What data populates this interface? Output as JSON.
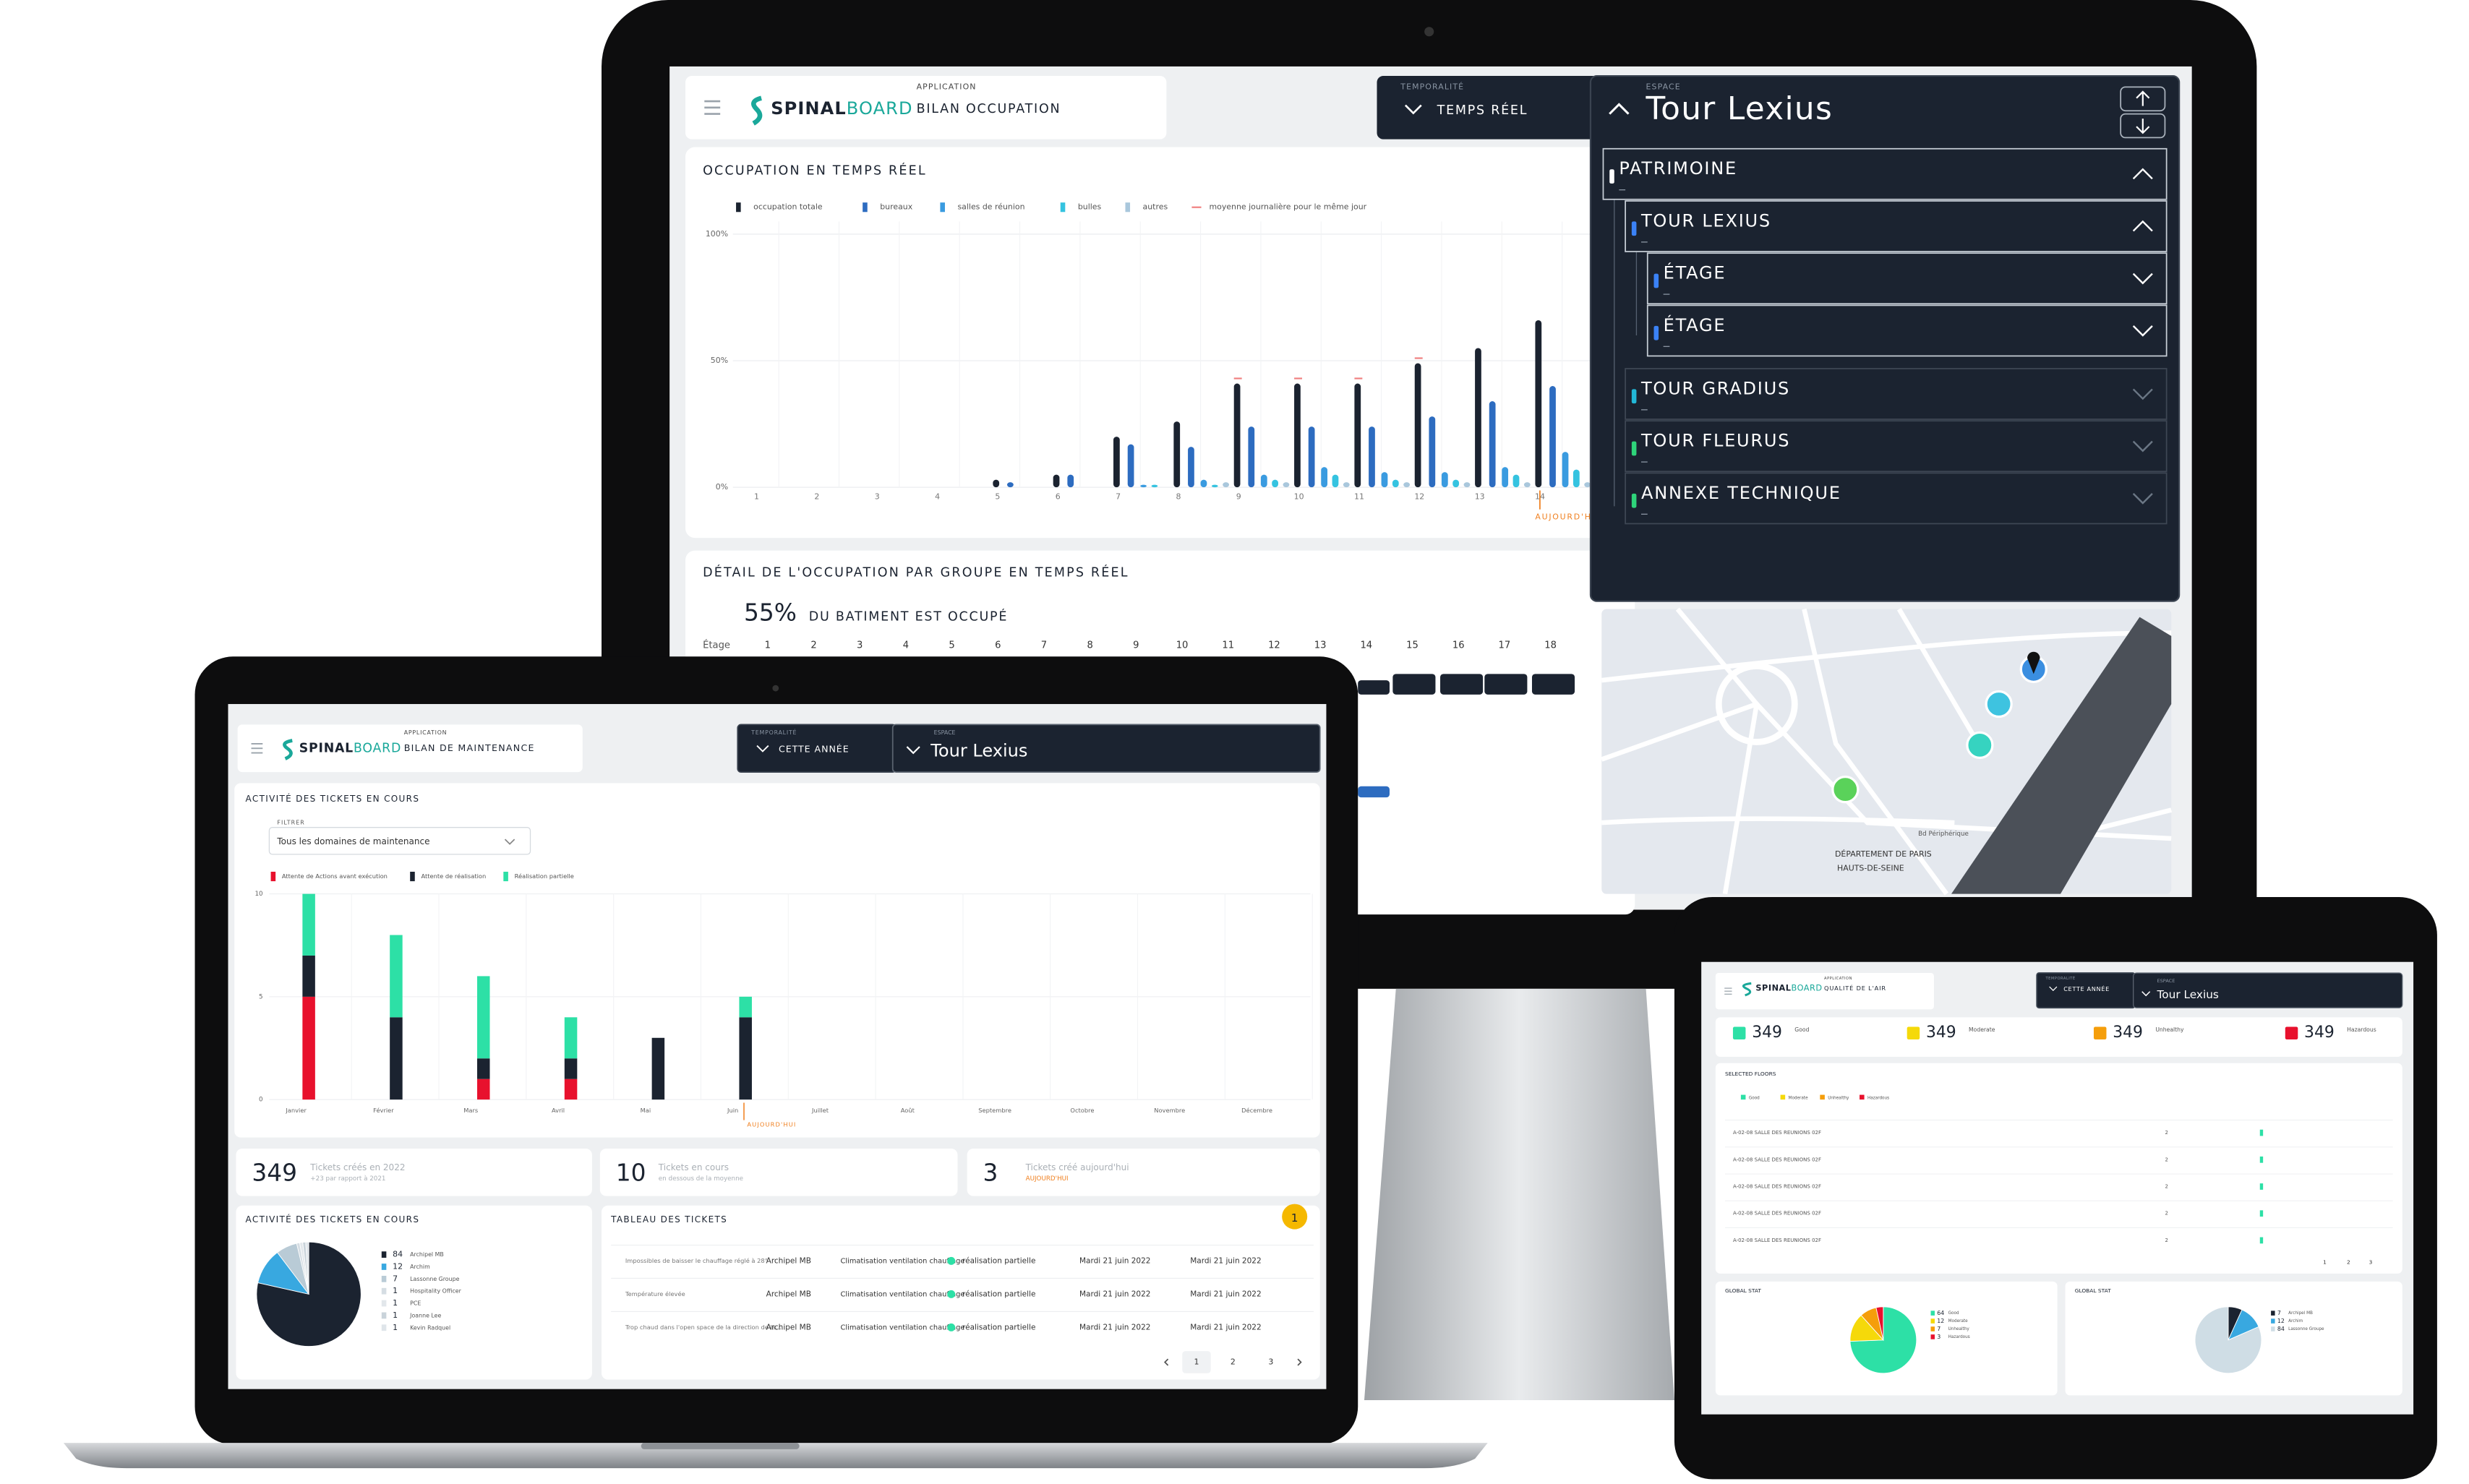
{
  "monitor": {
    "header": {
      "app_label": "APPLICATION",
      "brand_a": "SPINAL",
      "brand_b": "BOARD",
      "title": "BILAN OCCUPATION"
    },
    "temporalite": {
      "label": "TEMPORALITÉ",
      "value": "TEMPS RÉEL"
    },
    "espace": {
      "label": "ESPACE",
      "value": "Tour Lexius"
    },
    "tree": [
      {
        "label": "PATRIMOINE",
        "color": "#ffffff"
      },
      {
        "label": "TOUR LEXIUS",
        "color": "#3b82f6"
      },
      {
        "label": "ÉTAGE",
        "color": "#3b82f6"
      },
      {
        "label": "ÉTAGE",
        "color": "#3b82f6"
      },
      {
        "label": "TOUR GRADIUS",
        "color": "#22b8d8"
      },
      {
        "label": "TOUR FLEURUS",
        "color": "#2ed47a"
      },
      {
        "label": "ANNEXE TECHNIQUE",
        "color": "#2ed47a"
      }
    ],
    "map_labels": [
      "DÉPARTEMENT DE PARIS",
      "HAUTS-DE-SEINE",
      "Bd Périphérique"
    ],
    "chart_data": {
      "type": "bar",
      "title": "OCCUPATION EN TEMPS RÉEL",
      "categories": [
        "1",
        "2",
        "3",
        "4",
        "5",
        "6",
        "7",
        "8",
        "9",
        "10",
        "11",
        "12",
        "13",
        "14"
      ],
      "ylim": [
        0,
        100
      ],
      "yticks": [
        {
          "value": 0,
          "label": "0%"
        },
        {
          "value": 50,
          "label": "50%"
        },
        {
          "value": 100,
          "label": "100%"
        }
      ],
      "annotation": "AUJOURD'HUI",
      "series": [
        {
          "name": "occupation totale",
          "color": "#1b2330",
          "values": [
            null,
            null,
            null,
            null,
            3,
            5,
            20,
            26,
            41,
            41,
            41,
            49,
            55,
            66
          ]
        },
        {
          "name": "bureaux",
          "color": "#2d6cc0",
          "values": [
            null,
            null,
            null,
            null,
            2,
            5,
            17,
            16,
            24,
            24,
            24,
            28,
            34,
            40
          ]
        },
        {
          "name": "salles de réunion",
          "color": "#3a9be0",
          "values": [
            null,
            null,
            null,
            null,
            null,
            null,
            1,
            3,
            5,
            8,
            6,
            6,
            8,
            14
          ]
        },
        {
          "name": "bulles",
          "color": "#35c3e0",
          "values": [
            null,
            null,
            null,
            null,
            null,
            null,
            1,
            1,
            3,
            5,
            3,
            3,
            5,
            7
          ]
        },
        {
          "name": "autres",
          "color": "#a9c7dc",
          "values": [
            null,
            null,
            null,
            null,
            null,
            null,
            null,
            2,
            2,
            2,
            2,
            2,
            2,
            2
          ]
        },
        {
          "name": "moyenne journalière pour le même jour",
          "color": "#f08080",
          "values": [
            null,
            null,
            null,
            null,
            null,
            null,
            null,
            null,
            43,
            43,
            43,
            51,
            null,
            null
          ]
        }
      ]
    },
    "detail": {
      "title": "DÉTAIL DE L'OCCUPATION PAR GROUPE EN TEMPS RÉEL",
      "percent": "55%",
      "caption": "DU BATIMENT EST OCCUPÉ",
      "floor_label": "Étage",
      "floors": [
        "1",
        "2",
        "3",
        "4",
        "5",
        "6",
        "7",
        "8",
        "9",
        "10",
        "11",
        "12",
        "13",
        "14",
        "15",
        "16",
        "17",
        "18"
      ]
    }
  },
  "laptop": {
    "header": {
      "app_label": "APPLICATION",
      "brand_a": "SPINAL",
      "brand_b": "BOARD",
      "title": "BILAN DE MAINTENANCE"
    },
    "temporalite": {
      "label": "TEMPORALITÉ",
      "value": "CETTE ANNÉE"
    },
    "espace": {
      "label": "ESPACE",
      "value": "Tour Lexius"
    },
    "filter": {
      "label": "FILTRER",
      "value": "Tous les domaines de maintenance"
    },
    "chart_data": {
      "type": "stacked_bar",
      "title": "ACTIVITÉ DES TICKETS EN COURS",
      "categories": [
        "Janvier",
        "Février",
        "Mars",
        "Avril",
        "Mai",
        "Juin",
        "Juillet",
        "Août",
        "Septembre",
        "Octobre",
        "Novembre",
        "Décembre"
      ],
      "ylim": [
        0,
        10
      ],
      "yticks": [
        0,
        5,
        10
      ],
      "annotation": "AUJOURD'HUI",
      "series": [
        {
          "name": "Attente de Actions avant exécution",
          "color": "#e8112d",
          "values": [
            5,
            null,
            1,
            1,
            null,
            null,
            null,
            null,
            null,
            null,
            null,
            null
          ]
        },
        {
          "name": "Attente de réalisation",
          "color": "#1b2330",
          "values": [
            2,
            4,
            1,
            1,
            3,
            4,
            null,
            null,
            null,
            null,
            null,
            null
          ]
        },
        {
          "name": "Réalisation partielle",
          "color": "#2de0a6",
          "values": [
            3,
            4,
            4,
            2,
            null,
            1,
            null,
            null,
            null,
            null,
            null,
            null
          ]
        }
      ]
    },
    "stats": [
      {
        "value": 349,
        "label": "Tickets créés en 2022",
        "sub": "+23 par rapport à 2021"
      },
      {
        "value": 10,
        "label": "Tickets en cours",
        "sub": "en dessous de la moyenne"
      },
      {
        "value": 3,
        "label": "Tickets créé aujourd'hui",
        "sub": "AUJOURD'HUI"
      }
    ],
    "pie": {
      "type": "pie",
      "title": "ACTIVITÉ DES TICKETS EN COURS",
      "categories": [
        "Archipel MB",
        "Archim",
        "Lassonne Groupe",
        "Hospitality Officer",
        "PCE",
        "Joanne Lee",
        "Kevin Radquel"
      ],
      "values": [
        84,
        12,
        7,
        1,
        1,
        1,
        1
      ],
      "colors": [
        "#1b2330",
        "#38a8e0",
        "#b9cbd6",
        "#d5dde3",
        "#e2e7eb",
        "#c9d3da",
        "#dfe5ea"
      ]
    },
    "table": {
      "title": "TABLEAU DES TICKETS",
      "badge": "1",
      "status_color": "#2de0a6",
      "rows": [
        [
          "Impossibles de baisser le chauffage réglé à 28°",
          "Archipel MB",
          "Climatisation ventilation chauffage",
          "réalisation partielle",
          "Mardi 21 juin 2022",
          "Mardi 21 juin 2022"
        ],
        [
          "Température élevée",
          "Archipel MB",
          "Climatisation ventilation chauffage",
          "réalisation partielle",
          "Mardi 21 juin 2022",
          "Mardi 21 juin 2022"
        ],
        [
          "Trop chaud dans l'open space de la direction de la...",
          "Archipel MB",
          "Climatisation ventilation chauffage",
          "réalisation partielle",
          "Mardi 21 juin 2022",
          "Mardi 21 juin 2022"
        ]
      ],
      "pages": [
        "1",
        "2",
        "3"
      ]
    }
  },
  "tablet": {
    "header": {
      "app_label": "APPLICATION",
      "brand_a": "SPINAL",
      "brand_b": "BOARD",
      "title": "QUALITÉ DE L'AIR"
    },
    "temporalite": {
      "label": "TEMPORALITÉ",
      "value": "CETTE ANNÉE"
    },
    "espace": {
      "label": "ESPACE",
      "value": "Tour Lexius"
    },
    "kpis": [
      {
        "value": 349,
        "label": "Good",
        "color": "#2de0a6"
      },
      {
        "value": 349,
        "label": "Moderate",
        "color": "#f5d90a"
      },
      {
        "value": 349,
        "label": "Unhealthy",
        "color": "#f59e0b"
      },
      {
        "value": 349,
        "label": "Hazardous",
        "color": "#e8112d"
      }
    ],
    "filter_title": "SELECTED FLOORS",
    "rows": [
      [
        "A-02-08 SALLE DES REUNIONS 02F",
        2
      ],
      [
        "A-02-08 SALLE DES REUNIONS 02F",
        2
      ],
      [
        "A-02-08 SALLE DES REUNIONS 02F",
        2
      ],
      [
        "A-02-08 SALLE DES REUNIONS 02F",
        2
      ],
      [
        "A-02-08 SALLE DES REUNIONS 02F",
        2
      ]
    ],
    "pages": [
      "1",
      "2",
      "3"
    ],
    "pies": [
      {
        "type": "pie",
        "title": "GLOBAL STAT",
        "categories": [
          "Good",
          "Moderate",
          "Unhealthy",
          "Hazardous"
        ],
        "values": [
          64,
          12,
          7,
          3
        ],
        "colors": [
          "#2de0a6",
          "#f5d90a",
          "#f59e0b",
          "#e8112d"
        ]
      },
      {
        "type": "pie",
        "title": "GLOBAL STAT",
        "categories": [
          "Archipel MB",
          "Archim",
          "Lassonne Groupe"
        ],
        "values": [
          7,
          12,
          84
        ],
        "colors": [
          "#1b2330",
          "#38a8e0",
          "#cfdde5"
        ]
      }
    ]
  }
}
